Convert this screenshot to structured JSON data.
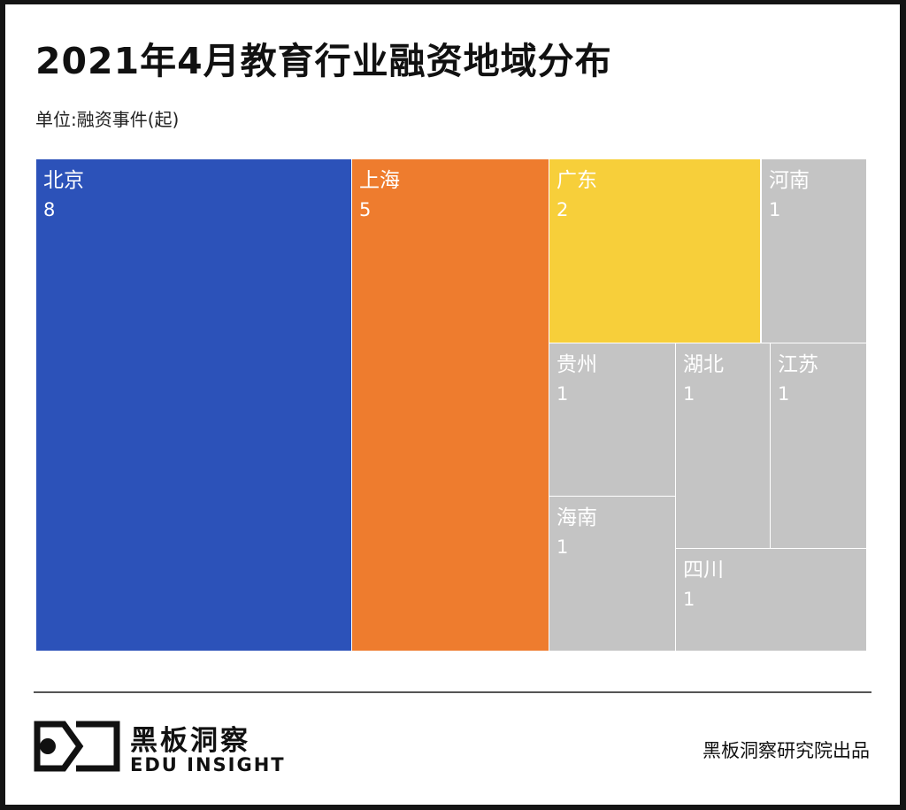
{
  "header": {
    "title": "2021年4月教育行业融资地域分布",
    "unit": "单位:融资事件(起)"
  },
  "chart_data": {
    "type": "treemap",
    "title": "2021年4月教育行业融资地域分布",
    "unit_label": "单位:融资事件(起)",
    "items": [
      {
        "name": "北京",
        "value": 8,
        "color": "#2c52b9"
      },
      {
        "name": "上海",
        "value": 5,
        "color": "#ee7c2e"
      },
      {
        "name": "广东",
        "value": 2,
        "color": "#f7cf3a"
      },
      {
        "name": "河南",
        "value": 1,
        "color": "#c4c4c4"
      },
      {
        "name": "贵州",
        "value": 1,
        "color": "#c4c4c4"
      },
      {
        "name": "湖北",
        "value": 1,
        "color": "#c4c4c4"
      },
      {
        "name": "江苏",
        "value": 1,
        "color": "#c4c4c4"
      },
      {
        "name": "海南",
        "value": 1,
        "color": "#c4c4c4"
      },
      {
        "name": "四川",
        "value": 1,
        "color": "#c4c4c4"
      }
    ]
  },
  "footer": {
    "brand_cn": "黑板洞察",
    "brand_en": "EDU INSIGHT",
    "credit": "黑板洞察研究院出品"
  }
}
